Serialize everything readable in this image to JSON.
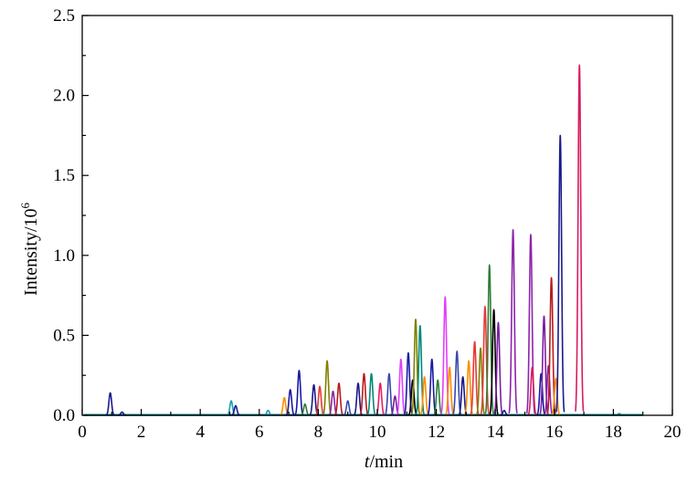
{
  "chart_data": {
    "type": "line",
    "title": "",
    "xlabel_italic": "t",
    "xlabel_rest": "/min",
    "ylabel_base": "Intensity/10",
    "ylabel_exp": "6",
    "xlim": [
      0,
      20
    ],
    "ylim": [
      0,
      2.5
    ],
    "xticks": [
      "0",
      "2",
      "4",
      "6",
      "8",
      "10",
      "12",
      "14",
      "16",
      "18",
      "20"
    ],
    "yticks": [
      "0.0",
      "0.5",
      "1.0",
      "1.5",
      "2.0",
      "2.5"
    ],
    "grid": false,
    "legend": "none",
    "baseline_colors": [
      "#1e1eb4",
      "#d81b60",
      "#00897b"
    ],
    "peaks": [
      {
        "t": 0.95,
        "h": 0.14,
        "color": "#1a1a8c"
      },
      {
        "t": 1.35,
        "h": 0.02,
        "color": "#1a1a8c"
      },
      {
        "t": 5.05,
        "h": 0.09,
        "color": "#1a9bb5"
      },
      {
        "t": 5.2,
        "h": 0.06,
        "color": "#1a1a8c"
      },
      {
        "t": 6.3,
        "h": 0.03,
        "color": "#1a9bb5"
      },
      {
        "t": 6.85,
        "h": 0.11,
        "color": "#ff8c00"
      },
      {
        "t": 7.05,
        "h": 0.16,
        "color": "#1a1aa0"
      },
      {
        "t": 7.35,
        "h": 0.28,
        "color": "#1a1aa0"
      },
      {
        "t": 7.55,
        "h": 0.07,
        "color": "#2e7d32"
      },
      {
        "t": 7.85,
        "h": 0.19,
        "color": "#1a1a8c"
      },
      {
        "t": 8.05,
        "h": 0.18,
        "color": "#e53935"
      },
      {
        "t": 8.3,
        "h": 0.34,
        "color": "#808000"
      },
      {
        "t": 8.5,
        "h": 0.15,
        "color": "#8e24aa"
      },
      {
        "t": 8.7,
        "h": 0.2,
        "color": "#b71c1c"
      },
      {
        "t": 9.0,
        "h": 0.09,
        "color": "#3949ab"
      },
      {
        "t": 9.35,
        "h": 0.2,
        "color": "#1a1a8c"
      },
      {
        "t": 9.55,
        "h": 0.26,
        "color": "#b71c1c"
      },
      {
        "t": 9.8,
        "h": 0.26,
        "color": "#00897b"
      },
      {
        "t": 10.1,
        "h": 0.2,
        "color": "#e91e63"
      },
      {
        "t": 10.4,
        "h": 0.26,
        "color": "#3949ab"
      },
      {
        "t": 10.6,
        "h": 0.12,
        "color": "#7b1fa2"
      },
      {
        "t": 10.8,
        "h": 0.35,
        "color": "#e040fb"
      },
      {
        "t": 11.05,
        "h": 0.39,
        "color": "#1a1aa0"
      },
      {
        "t": 11.2,
        "h": 0.22,
        "color": "#000000"
      },
      {
        "t": 11.3,
        "h": 0.6,
        "color": "#808000"
      },
      {
        "t": 11.45,
        "h": 0.56,
        "color": "#00897b"
      },
      {
        "t": 11.6,
        "h": 0.24,
        "color": "#ff8c00"
      },
      {
        "t": 11.85,
        "h": 0.35,
        "color": "#1a1aa0"
      },
      {
        "t": 12.05,
        "h": 0.22,
        "color": "#2e7d32"
      },
      {
        "t": 12.3,
        "h": 0.74,
        "color": "#e040fb"
      },
      {
        "t": 12.45,
        "h": 0.3,
        "color": "#ff8c00"
      },
      {
        "t": 12.7,
        "h": 0.4,
        "color": "#3949ab"
      },
      {
        "t": 12.9,
        "h": 0.24,
        "color": "#1a1a8c"
      },
      {
        "t": 13.1,
        "h": 0.34,
        "color": "#ff8c00"
      },
      {
        "t": 13.3,
        "h": 0.46,
        "color": "#e53935"
      },
      {
        "t": 13.5,
        "h": 0.42,
        "color": "#808000"
      },
      {
        "t": 13.65,
        "h": 0.68,
        "color": "#e53935"
      },
      {
        "t": 13.8,
        "h": 0.94,
        "color": "#2e7d32"
      },
      {
        "t": 13.95,
        "h": 0.66,
        "color": "#000000"
      },
      {
        "t": 14.1,
        "h": 0.58,
        "color": "#7b1fa2"
      },
      {
        "t": 14.3,
        "h": 0.03,
        "color": "#1a1a8c"
      },
      {
        "t": 14.6,
        "h": 1.16,
        "color": "#8e24aa"
      },
      {
        "t": 15.2,
        "h": 1.13,
        "color": "#8e24aa"
      },
      {
        "t": 15.25,
        "h": 0.3,
        "color": "#d81b60"
      },
      {
        "t": 15.55,
        "h": 0.26,
        "color": "#1a1aa0"
      },
      {
        "t": 15.65,
        "h": 0.62,
        "color": "#7b1fa2"
      },
      {
        "t": 15.8,
        "h": 0.31,
        "color": "#8e24aa"
      },
      {
        "t": 15.9,
        "h": 0.86,
        "color": "#b71c1c"
      },
      {
        "t": 16.05,
        "h": 0.23,
        "color": "#ff8c00"
      },
      {
        "t": 16.2,
        "h": 1.75,
        "color": "#1a1a8c"
      },
      {
        "t": 16.85,
        "h": 2.19,
        "color": "#d81b60"
      },
      {
        "t": 18.2,
        "h": 0.01,
        "color": "#00897b"
      }
    ]
  }
}
